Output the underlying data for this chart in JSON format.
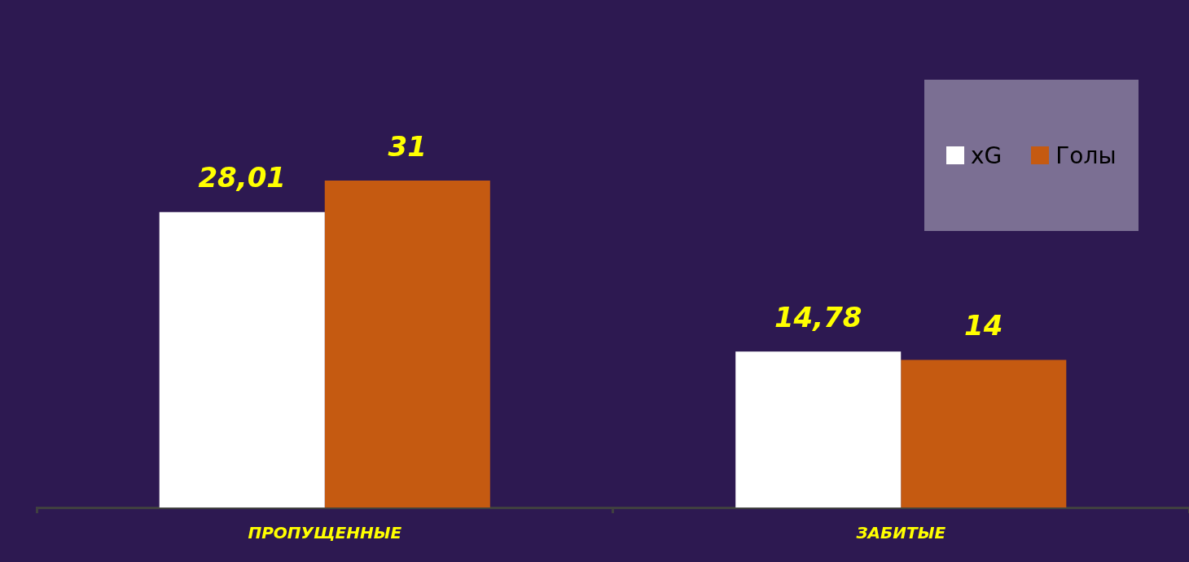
{
  "chart_data": {
    "type": "bar",
    "categories": [
      "ПРОПУЩЕННЫЕ",
      "ЗАБИТЫЕ"
    ],
    "series": [
      {
        "name": "xG",
        "color": "#ffffff",
        "values": [
          28.01,
          14.78
        ],
        "value_labels": [
          "28,01",
          "14,78"
        ]
      },
      {
        "name": "Голы",
        "color": "#c55a11",
        "values": [
          31,
          14
        ],
        "value_labels": [
          "31",
          "14"
        ]
      }
    ],
    "legend": "top right",
    "tick_labels": "x"
  }
}
